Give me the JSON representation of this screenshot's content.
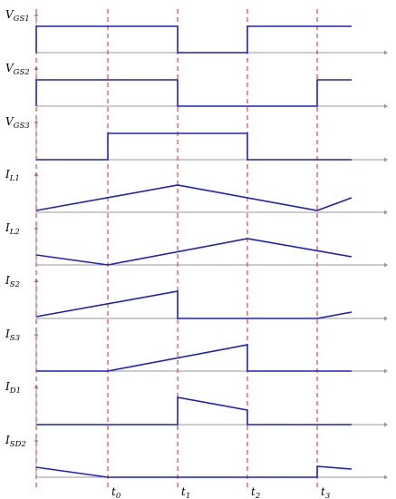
{
  "colors": {
    "signal": "#1f1fcf",
    "axis": "#9a9a9a",
    "marker": "#e02020",
    "text": "#000000"
  },
  "time_markers": [
    {
      "main": "t",
      "sub": "0"
    },
    {
      "main": "t",
      "sub": "1"
    },
    {
      "main": "t",
      "sub": "2"
    },
    {
      "main": "t",
      "sub": "3"
    }
  ],
  "channels": [
    {
      "main": "V",
      "sub": "GS1"
    },
    {
      "main": "V",
      "sub": "GS2"
    },
    {
      "main": "V",
      "sub": "GS3"
    },
    {
      "main": "I",
      "sub": "L1"
    },
    {
      "main": "I",
      "sub": "L2"
    },
    {
      "main": "I",
      "sub": "S2"
    },
    {
      "main": "I",
      "sub": "S3"
    },
    {
      "main": "I",
      "sub": "D1"
    },
    {
      "main": "I",
      "sub": "SD2"
    }
  ]
}
